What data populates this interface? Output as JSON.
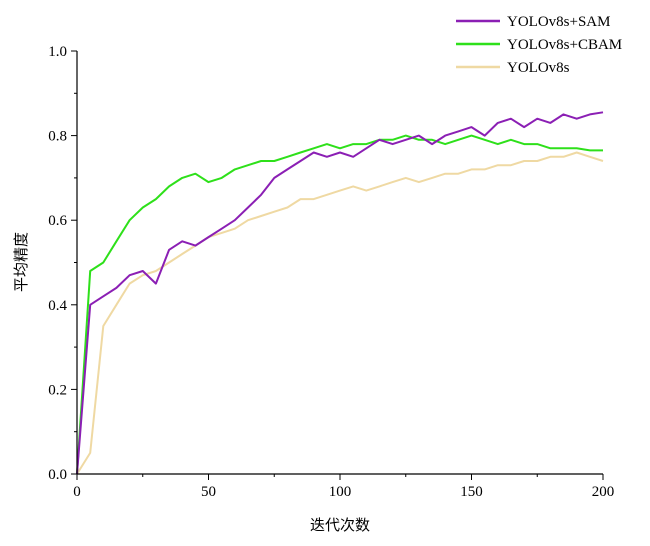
{
  "chart_data": {
    "type": "line",
    "title": "",
    "xlabel": "迭代次数",
    "ylabel": "平均精度",
    "xlim": [
      0,
      200
    ],
    "ylim": [
      0.0,
      1.0
    ],
    "x_ticks": [
      "0",
      "50",
      "100",
      "150",
      "200"
    ],
    "y_ticks": [
      "0.0",
      "0.2",
      "0.4",
      "0.6",
      "0.8",
      "1.0"
    ],
    "grid": false,
    "legend_position": "top-right",
    "x": [
      0,
      5,
      10,
      15,
      20,
      25,
      30,
      35,
      40,
      45,
      50,
      55,
      60,
      65,
      70,
      75,
      80,
      85,
      90,
      95,
      100,
      105,
      110,
      115,
      120,
      125,
      130,
      135,
      140,
      145,
      150,
      155,
      160,
      165,
      170,
      175,
      180,
      185,
      190,
      195,
      200
    ],
    "series": [
      {
        "name": "YOLOv8s+SAM",
        "color": "#8b1fb4",
        "values": [
          0.0,
          0.4,
          0.42,
          0.44,
          0.47,
          0.48,
          0.45,
          0.53,
          0.55,
          0.54,
          0.56,
          0.58,
          0.6,
          0.63,
          0.66,
          0.7,
          0.72,
          0.74,
          0.76,
          0.75,
          0.76,
          0.75,
          0.77,
          0.79,
          0.78,
          0.79,
          0.8,
          0.78,
          0.8,
          0.81,
          0.82,
          0.8,
          0.83,
          0.84,
          0.82,
          0.84,
          0.83,
          0.85,
          0.84,
          0.85,
          0.855
        ]
      },
      {
        "name": "YOLOv8s+CBAM",
        "color": "#2ee01a",
        "values": [
          0.0,
          0.48,
          0.5,
          0.55,
          0.6,
          0.63,
          0.65,
          0.68,
          0.7,
          0.71,
          0.69,
          0.7,
          0.72,
          0.73,
          0.74,
          0.74,
          0.75,
          0.76,
          0.77,
          0.78,
          0.77,
          0.78,
          0.78,
          0.79,
          0.79,
          0.8,
          0.79,
          0.79,
          0.78,
          0.79,
          0.8,
          0.79,
          0.78,
          0.79,
          0.78,
          0.78,
          0.77,
          0.77,
          0.77,
          0.765,
          0.765
        ]
      },
      {
        "name": "YOLOv8s",
        "color": "#efd9a3",
        "values": [
          0.0,
          0.05,
          0.35,
          0.4,
          0.45,
          0.47,
          0.48,
          0.5,
          0.52,
          0.54,
          0.56,
          0.57,
          0.58,
          0.6,
          0.61,
          0.62,
          0.63,
          0.65,
          0.65,
          0.66,
          0.67,
          0.68,
          0.67,
          0.68,
          0.69,
          0.7,
          0.69,
          0.7,
          0.71,
          0.71,
          0.72,
          0.72,
          0.73,
          0.73,
          0.74,
          0.74,
          0.75,
          0.75,
          0.76,
          0.75,
          0.74
        ]
      }
    ]
  }
}
